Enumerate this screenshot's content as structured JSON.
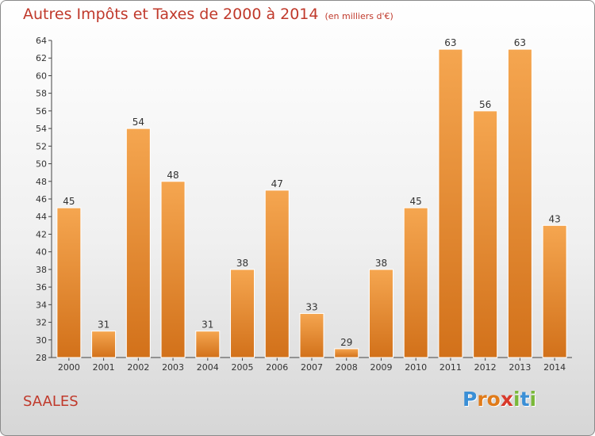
{
  "chart_data": {
    "type": "bar",
    "title": "Autres Impôts et Taxes de 2000 à 2014",
    "unit": "(en milliers d'€)",
    "categories": [
      "2000",
      "2001",
      "2002",
      "2003",
      "2004",
      "2005",
      "2006",
      "2007",
      "2008",
      "2009",
      "2010",
      "2011",
      "2012",
      "2013",
      "2014"
    ],
    "values": [
      45,
      31,
      54,
      48,
      31,
      38,
      47,
      33,
      29,
      38,
      45,
      63,
      56,
      63,
      43
    ],
    "ylim": [
      28,
      64
    ],
    "yticks": [
      28,
      30,
      32,
      34,
      36,
      38,
      40,
      42,
      44,
      46,
      48,
      50,
      52,
      54,
      56,
      58,
      60,
      62,
      64
    ],
    "grid": false,
    "bar_color_top": "#f5a650",
    "bar_color_bottom": "#d2711a"
  },
  "footer": {
    "town": "SAALES",
    "logo_letters": [
      "P",
      "r",
      "o",
      "x",
      "i",
      "t",
      "i"
    ],
    "logo_colors": [
      "#3a8fd6",
      "#e07b1a",
      "#e07b1a",
      "#d8392b",
      "#7ab83a",
      "#3a8fd6",
      "#7ab83a"
    ]
  }
}
